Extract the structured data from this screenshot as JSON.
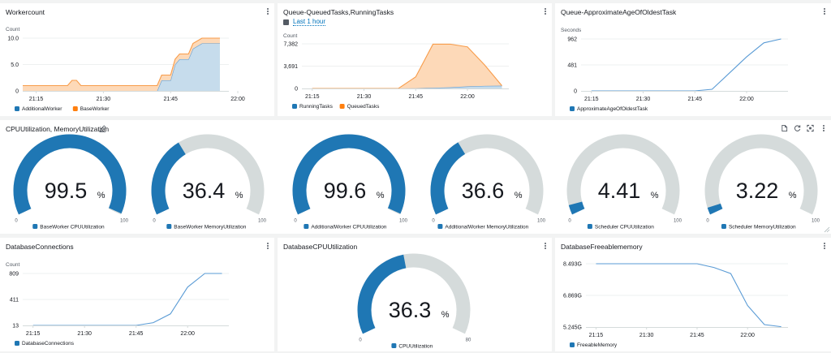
{
  "colors": {
    "blue": "#1f77b4",
    "orange": "#ff7f0e",
    "blue_fill": "#c6dcec",
    "orange_fill": "#fdd9b8",
    "gauge_track": "#d5dbdb",
    "line": "#5a9bd5",
    "grid": "#eef0f0",
    "axis": "#d5dbdb",
    "text_muted": "#545b64",
    "link": "#0073bb"
  },
  "panels": {
    "workercount": {
      "title": "Workercount"
    },
    "queue_tasks": {
      "title": "Queue-QueuedTasks,RunningTasks",
      "time_range": "Last 1 hour"
    },
    "queue_age": {
      "title": "Queue-ApproximateAgeOfOldestTask"
    },
    "gauges": {
      "title": "CPUUtilization, MemoryUtilization"
    },
    "db_connections": {
      "title": "DatabaseConnections"
    },
    "db_cpu": {
      "title": "DatabaseCPUUtilization"
    },
    "db_memory": {
      "title": "DatabaseFreeablememory"
    }
  },
  "chart_data": [
    {
      "id": "workercount",
      "type": "area",
      "stacked": true,
      "title": "Workercount",
      "ylabel": "Count",
      "yticks": [
        "0",
        "5.0",
        "10.0"
      ],
      "ylim": [
        0,
        10
      ],
      "xticks": [
        "21:15",
        "21:30",
        "21:45",
        "22:00"
      ],
      "x_minutes": [
        0,
        10,
        11,
        12,
        13,
        30,
        31,
        32,
        33,
        34,
        35,
        36,
        37,
        38,
        40,
        44
      ],
      "x_range_minutes": [
        0,
        46
      ],
      "x_tick_minutes": [
        3,
        18,
        33,
        48
      ],
      "legend": [
        "AdditionalWorker",
        "BaseWorker"
      ],
      "legend_position": "bottom-left",
      "series": [
        {
          "name": "AdditionalWorker",
          "color": "#1f77b4",
          "values": [
            0,
            0,
            0,
            0,
            0,
            0,
            2,
            2,
            2,
            5,
            6,
            6,
            6,
            8,
            9,
            9
          ]
        },
        {
          "name": "BaseWorker",
          "color": "#ff7f0e",
          "values": [
            1,
            1,
            2,
            2,
            1,
            1,
            1,
            1,
            1,
            1,
            1,
            1,
            1,
            1,
            1,
            1
          ]
        }
      ]
    },
    {
      "id": "queue_tasks",
      "type": "area",
      "stacked": true,
      "title": "Queue-QueuedTasks,RunningTasks",
      "ylabel": "Count",
      "yticks": [
        "0",
        "3,691",
        "7,382"
      ],
      "ylim": [
        0,
        7382
      ],
      "xticks": [
        "21:15",
        "21:30",
        "21:45",
        "22:00"
      ],
      "x_minutes": [
        0,
        5,
        10,
        15,
        20,
        25,
        30,
        35,
        40,
        45,
        50,
        55
      ],
      "x_range_minutes": [
        -3,
        57
      ],
      "x_tick_minutes": [
        0,
        15,
        30,
        45
      ],
      "legend": [
        "RunningTasks",
        "QueuedTasks"
      ],
      "legend_position": "bottom-left",
      "series": [
        {
          "name": "RunningTasks",
          "color": "#1f77b4",
          "values": [
            0,
            0,
            0,
            0,
            0,
            0,
            20,
            100,
            180,
            330,
            420,
            450
          ]
        },
        {
          "name": "QueuedTasks",
          "color": "#ff7f0e",
          "values": [
            0,
            0,
            0,
            0,
            0,
            0,
            1900,
            7220,
            7150,
            6550,
            3450,
            0
          ]
        }
      ]
    },
    {
      "id": "queue_age",
      "type": "line",
      "title": "Queue-ApproximateAgeOfOldestTask",
      "ylabel": "Seconds",
      "yticks": [
        "0",
        "481",
        "962"
      ],
      "ylim": [
        0,
        962
      ],
      "xticks": [
        "21:15",
        "21:30",
        "21:45",
        "22:00"
      ],
      "x_minutes": [
        0,
        5,
        10,
        15,
        20,
        25,
        30,
        35,
        40,
        45,
        50,
        55
      ],
      "x_range_minutes": [
        -3,
        57
      ],
      "x_tick_minutes": [
        0,
        15,
        30,
        45
      ],
      "legend": [
        "ApproximateAgeOfOldestTask"
      ],
      "legend_position": "bottom-left",
      "series": [
        {
          "name": "ApproximateAgeOfOldestTask",
          "color": "#1f77b4",
          "values": [
            0,
            0,
            0,
            0,
            0,
            0,
            0,
            30,
            330,
            630,
            890,
            962
          ]
        }
      ]
    },
    {
      "id": "db_connections",
      "type": "line",
      "title": "DatabaseConnections",
      "ylabel": "Count",
      "yticks": [
        "13",
        "411",
        "809"
      ],
      "ylim": [
        13,
        809
      ],
      "xticks": [
        "21:15",
        "21:30",
        "21:45",
        "22:00"
      ],
      "x_minutes": [
        0,
        5,
        10,
        15,
        20,
        25,
        30,
        35,
        40,
        45,
        50,
        55
      ],
      "x_range_minutes": [
        -3,
        57
      ],
      "x_tick_minutes": [
        0,
        15,
        30,
        45
      ],
      "legend": [
        "DatabaseConnections"
      ],
      "legend_position": "bottom-left",
      "series": [
        {
          "name": "DatabaseConnections",
          "color": "#1f77b4",
          "values": [
            13,
            13,
            13,
            13,
            13,
            13,
            13,
            55,
            190,
            600,
            809,
            809
          ]
        }
      ]
    },
    {
      "id": "db_memory",
      "type": "line",
      "title": "DatabaseFreeablememory",
      "ylabel": "",
      "yticks": [
        "5.245G",
        "6.869G",
        "8.493G"
      ],
      "ylim": [
        5.245,
        8.493
      ],
      "xticks": [
        "21:15",
        "21:30",
        "21:45",
        "22:00"
      ],
      "x_minutes": [
        0,
        5,
        10,
        15,
        20,
        25,
        30,
        35,
        40,
        45,
        50,
        55
      ],
      "x_range_minutes": [
        -3,
        57
      ],
      "x_tick_minutes": [
        0,
        15,
        30,
        45
      ],
      "legend": [
        "FreeableMemory"
      ],
      "legend_position": "bottom-left",
      "series": [
        {
          "name": "FreeableMemory",
          "color": "#1f77b4",
          "values": [
            8.493,
            8.493,
            8.493,
            8.493,
            8.493,
            8.493,
            8.493,
            8.3,
            7.99,
            6.35,
            5.37,
            5.26
          ]
        }
      ]
    },
    {
      "id": "gauges",
      "type": "gauge",
      "title": "CPUUtilization, MemoryUtilization",
      "unit": "%",
      "gauges": [
        {
          "label": "BaseWorker CPUUtilization",
          "value": 99.5,
          "display": "99.5",
          "min": 0,
          "max": 100,
          "min_label": "0",
          "max_label": "100"
        },
        {
          "label": "BaseWorker MemoryUtilization",
          "value": 36.4,
          "display": "36.4",
          "min": 0,
          "max": 100,
          "min_label": "0",
          "max_label": "100"
        },
        {
          "label": "AdditionalWorker CPUUtilization",
          "value": 99.6,
          "display": "99.6",
          "min": 0,
          "max": 100,
          "min_label": "0",
          "max_label": "100"
        },
        {
          "label": "AdditionalWorker MemoryUtilization",
          "value": 36.6,
          "display": "36.6",
          "min": 0,
          "max": 100,
          "min_label": "0",
          "max_label": "100"
        },
        {
          "label": "Scheduler CPUUtilization",
          "value": 4.41,
          "display": "4.41",
          "min": 0,
          "max": 100,
          "min_label": "0",
          "max_label": "100"
        },
        {
          "label": "Scheduler MemoryUtilization",
          "value": 3.22,
          "display": "3.22",
          "min": 0,
          "max": 100,
          "min_label": "0",
          "max_label": "100"
        }
      ]
    },
    {
      "id": "db_cpu",
      "type": "gauge",
      "title": "DatabaseCPUUtilization",
      "unit": "%",
      "gauges": [
        {
          "label": "CPUUtilization",
          "value": 36.3,
          "display": "36.3",
          "min": 0,
          "max": 80,
          "min_label": "0",
          "max_label": "80"
        }
      ]
    }
  ]
}
